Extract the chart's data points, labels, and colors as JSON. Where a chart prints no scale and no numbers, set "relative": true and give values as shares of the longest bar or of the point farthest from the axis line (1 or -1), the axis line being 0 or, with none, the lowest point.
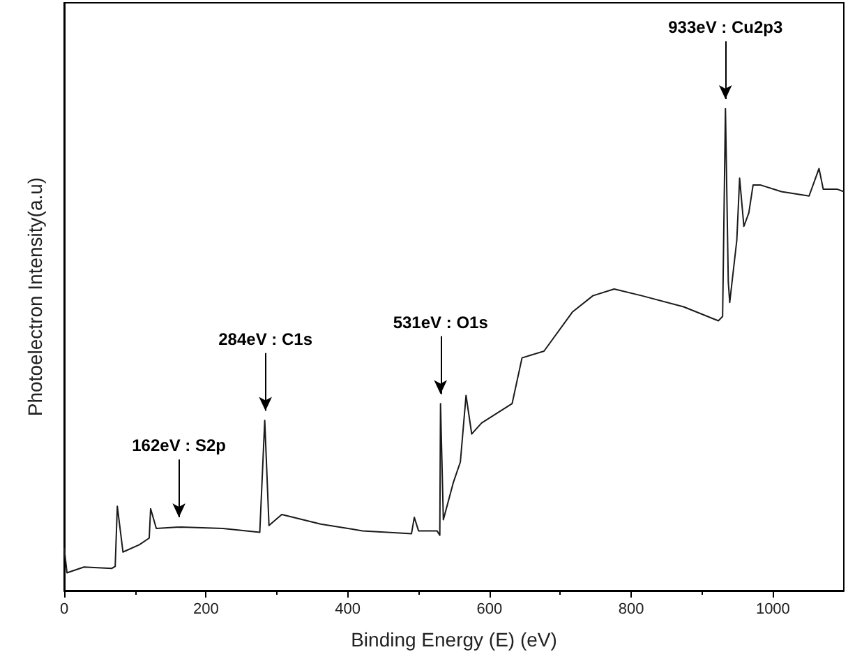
{
  "chart_data": {
    "type": "line",
    "relative": true,
    "xlabel": "Binding Energy (E) (eV)",
    "ylabel": "Photoelectron Intensity(a.u)",
    "xlim": [
      0,
      1100
    ],
    "xticks": [
      0,
      200,
      400,
      600,
      800,
      1000
    ],
    "marker": "none",
    "line_style": "solid",
    "grid": false,
    "x": [
      0,
      4,
      28,
      67,
      72,
      75,
      83,
      106,
      120,
      122,
      130,
      165,
      224,
      276,
      283,
      289,
      307,
      362,
      421,
      490,
      494,
      500,
      526,
      530,
      531,
      535,
      549,
      559,
      567,
      575,
      589,
      632,
      646,
      677,
      717,
      746,
      776,
      815,
      874,
      923,
      929,
      933,
      937,
      939,
      949,
      953,
      959,
      966,
      972,
      982,
      1012,
      1051,
      1065,
      1071,
      1091,
      1100
    ],
    "series": [
      {
        "color": "#1a1a1a",
        "values": [
          0.089,
          0.037,
          0.049,
          0.046,
          0.05,
          0.175,
          0.08,
          0.095,
          0.109,
          0.17,
          0.129,
          0.132,
          0.129,
          0.121,
          0.353,
          0.135,
          0.158,
          0.138,
          0.124,
          0.118,
          0.152,
          0.124,
          0.124,
          0.115,
          0.388,
          0.147,
          0.224,
          0.267,
          0.405,
          0.325,
          0.348,
          0.388,
          0.483,
          0.497,
          0.578,
          0.612,
          0.626,
          0.612,
          0.589,
          0.56,
          0.569,
          1,
          0.641,
          0.598,
          0.727,
          0.856,
          0.756,
          0.784,
          0.842,
          0.842,
          0.828,
          0.819,
          0.876,
          0.833,
          0.833,
          0.828
        ]
      }
    ],
    "annotations": [
      {
        "text": "162eV : S2p",
        "x": 162,
        "y": 0.132
      },
      {
        "text": "284eV : C1s",
        "x": 284,
        "y": 0.353
      },
      {
        "text": "531eV : O1s",
        "x": 531,
        "y": 0.388
      },
      {
        "text": "933eV : Cu2p3",
        "x": 933,
        "y": 1
      }
    ]
  }
}
